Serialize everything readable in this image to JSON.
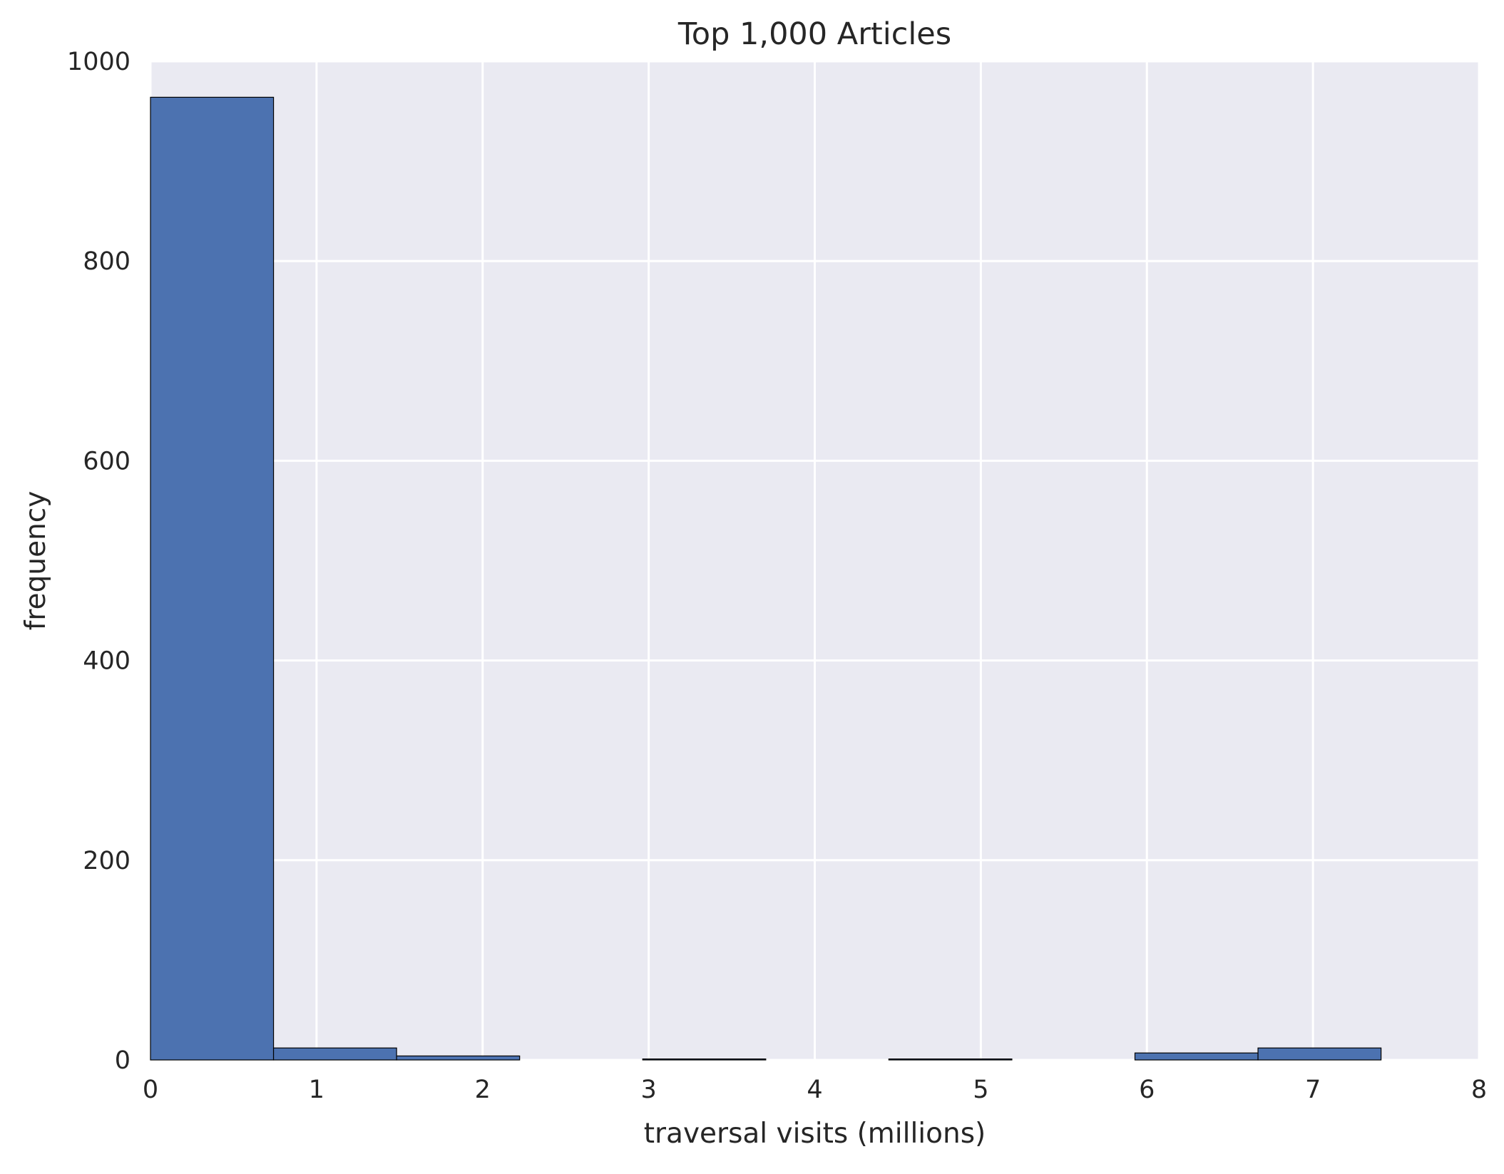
{
  "chart_data": {
    "type": "bar",
    "subtype": "histogram",
    "title": "Top 1,000 Articles",
    "xlabel": "traversal visits (millions)",
    "ylabel": "frequency",
    "xlim": [
      0,
      8
    ],
    "ylim": [
      0,
      1000
    ],
    "x_ticks": [
      "0",
      "1",
      "2",
      "3",
      "4",
      "5",
      "6",
      "7",
      "8"
    ],
    "y_ticks": [
      "0",
      "200",
      "400",
      "600",
      "800",
      "1000"
    ],
    "grid": true,
    "legend": "none",
    "bar_color": "#4C72B0",
    "background_color": "#EAEAF2",
    "bins": [
      {
        "x0": 0.0,
        "x1": 0.741,
        "value": 964
      },
      {
        "x0": 0.741,
        "x1": 1.482,
        "value": 12
      },
      {
        "x0": 1.482,
        "x1": 2.223,
        "value": 4
      },
      {
        "x0": 2.223,
        "x1": 2.964,
        "value": 0
      },
      {
        "x0": 2.964,
        "x1": 3.705,
        "value": 1
      },
      {
        "x0": 3.705,
        "x1": 4.446,
        "value": 0
      },
      {
        "x0": 4.446,
        "x1": 5.187,
        "value": 1
      },
      {
        "x0": 5.187,
        "x1": 5.928,
        "value": 0
      },
      {
        "x0": 5.928,
        "x1": 6.669,
        "value": 7
      },
      {
        "x0": 6.669,
        "x1": 7.41,
        "value": 12
      }
    ]
  }
}
